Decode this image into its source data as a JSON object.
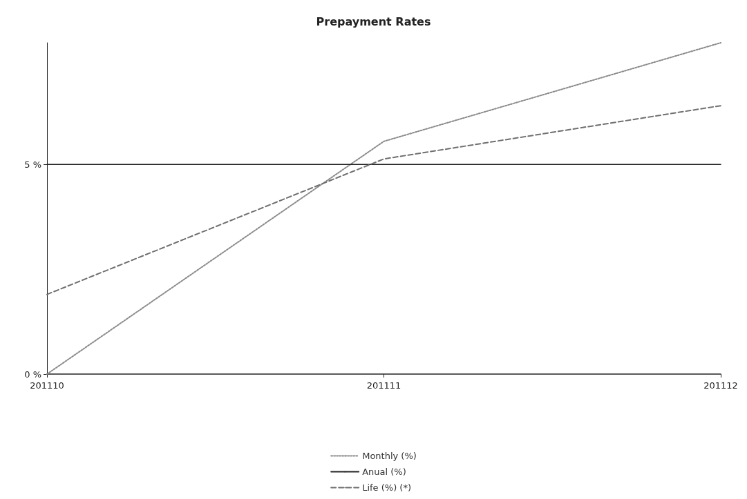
{
  "chart_data": {
    "type": "line",
    "title": "Prepayment Rates",
    "categories": [
      "201110",
      "201111",
      "201112"
    ],
    "series": [
      {
        "name": "Monthly (%)",
        "color": "#8a8a8a",
        "line_style": "dotted",
        "values": [
          0,
          5.55,
          7.9
        ]
      },
      {
        "name": "Anual (%)",
        "color": "#222222",
        "line_style": "solid",
        "values": [
          5,
          5,
          5
        ]
      },
      {
        "name": "Life (%) (*)",
        "color": "#6f6f6f",
        "line_style": "dashed",
        "values": [
          1.9,
          5.13,
          6.4
        ]
      }
    ],
    "ylim": [
      0,
      7.9
    ],
    "yticks": [
      {
        "value": 0,
        "label": "0 %"
      },
      {
        "value": 5,
        "label": "5 %"
      }
    ],
    "grid": false,
    "legend": "bottom",
    "marker": "none"
  }
}
